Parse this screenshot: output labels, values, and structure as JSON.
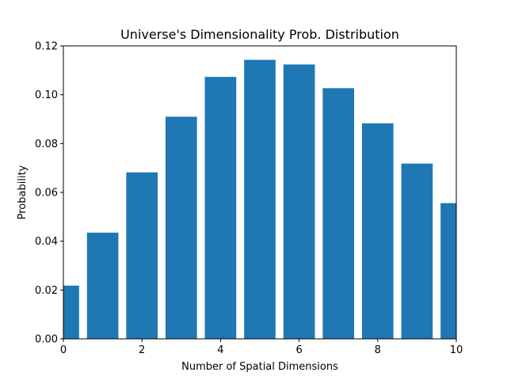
{
  "chart_data": {
    "type": "bar",
    "title": "Universe's Dimensionality Prob. Distribution",
    "xlabel": "Number of Spatial Dimensions",
    "ylabel": "Probability",
    "x": [
      0,
      1,
      2,
      3,
      4,
      5,
      6,
      7,
      8,
      9,
      10
    ],
    "values": [
      0.0218,
      0.0435,
      0.0682,
      0.091,
      0.1073,
      0.1143,
      0.1124,
      0.1027,
      0.0883,
      0.0718,
      0.0556
    ],
    "bar_width": 0.8,
    "xlim": [
      0,
      10
    ],
    "ylim": [
      0,
      0.12
    ],
    "xticks": [
      "0",
      "2",
      "4",
      "6",
      "8",
      "10"
    ],
    "yticks": [
      "0.00",
      "0.02",
      "0.04",
      "0.06",
      "0.08",
      "0.10",
      "0.12"
    ],
    "grid": false,
    "legend": "none",
    "bar_color": "#1f77b4"
  }
}
